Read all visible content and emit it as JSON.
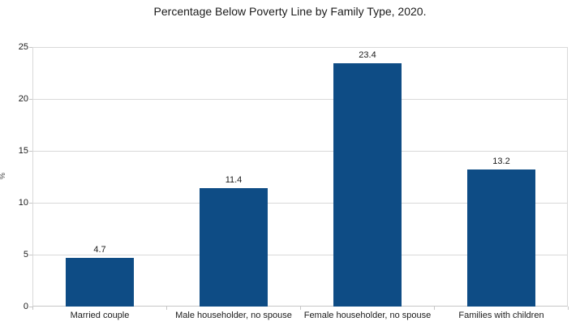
{
  "chart_data": {
    "type": "bar",
    "title": "Percentage Below Poverty Line by Family Type, 2020.",
    "categories": [
      "Married couple",
      "Male householder, no spouse",
      "Female householder, no spouse",
      "Families with children"
    ],
    "values": [
      4.7,
      11.4,
      23.4,
      13.2
    ],
    "data_labels": [
      "4.7",
      "11.4",
      "23.4",
      "13.2"
    ],
    "xlabel": "",
    "ylabel": "%",
    "ylim": [
      0,
      25
    ],
    "yticks": [
      0,
      5,
      10,
      15,
      20,
      25
    ],
    "grid": "horizontal",
    "legend": "none",
    "bar_color": "#0e4c85",
    "gridline_color": "#d9d9d9",
    "axis_color": "#c6c6c6",
    "text_color": "#1b1b1b"
  }
}
